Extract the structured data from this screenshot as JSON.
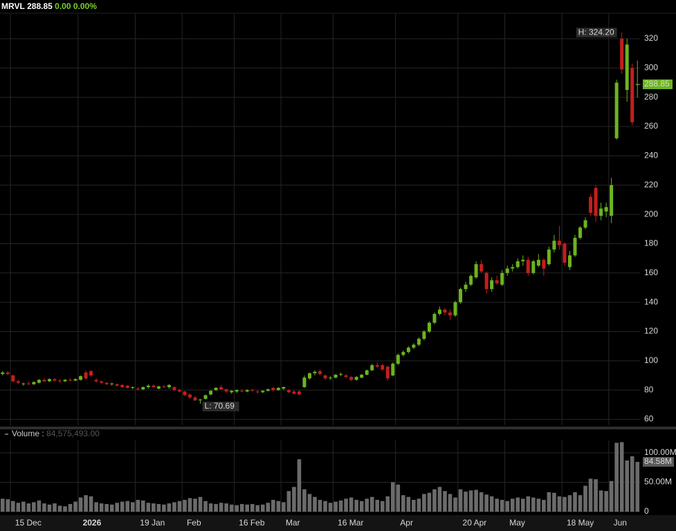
{
  "chart_data": [
    {
      "type": "candlestick",
      "symbol": "MRVL",
      "change": "0.00",
      "change_pct": "0.00%",
      "high_label": "H: 324.20",
      "low_label": "L: 70.69",
      "up_color": "#6cb41f",
      "down_color": "#c41e1e",
      "grid": true,
      "ylim": [
        56,
        337
      ],
      "yticks": [
        60,
        80,
        100,
        120,
        140,
        160,
        180,
        200,
        220,
        240,
        260,
        280,
        300,
        320
      ],
      "categories": [
        null,
        null,
        "15 Dec",
        null,
        null,
        null,
        null,
        null,
        null,
        null,
        null,
        null,
        null,
        null,
        null,
        "2026",
        null,
        null,
        null,
        null,
        null,
        null,
        null,
        null,
        null,
        null,
        "19 Jan",
        null,
        null,
        null,
        null,
        null,
        null,
        null,
        null,
        "Feb",
        null,
        null,
        null,
        null,
        null,
        null,
        null,
        null,
        null,
        "16 Feb",
        null,
        null,
        null,
        null,
        null,
        null,
        null,
        null,
        "Mar",
        null,
        null,
        null,
        null,
        null,
        null,
        null,
        null,
        null,
        "16 Mar",
        null,
        null,
        null,
        null,
        null,
        null,
        null,
        null,
        null,
        null,
        null,
        "Apr",
        null,
        null,
        null,
        null,
        null,
        null,
        null,
        null,
        null,
        null,
        null,
        "20 Apr",
        null,
        null,
        null,
        null,
        null,
        null,
        null,
        null,
        "May",
        null,
        null,
        null,
        null,
        null,
        null,
        null,
        null,
        null,
        null,
        "18 May",
        null,
        null,
        null,
        null,
        null,
        null,
        null,
        null,
        "Jun",
        null,
        null,
        null,
        null,
        null
      ],
      "open": [
        91,
        92,
        90,
        86,
        84,
        84.5,
        84,
        85,
        87,
        86,
        87.5,
        86.5,
        86,
        87,
        86.5,
        87,
        92,
        93,
        87,
        86,
        85,
        84,
        84,
        83.5,
        83,
        81.5,
        81,
        80.5,
        82,
        83,
        81,
        82.5,
        82,
        82,
        80,
        79,
        77,
        75,
        73,
        74,
        77,
        80,
        82,
        80.5,
        78.5,
        79,
        79.5,
        79,
        80,
        79,
        78.5,
        79.5,
        81.5,
        80,
        81,
        80,
        79,
        79,
        82,
        88,
        91.5,
        93,
        90,
        88,
        88.5,
        90.5,
        90,
        89,
        87,
        88.5,
        90.5,
        93.5,
        97,
        97,
        96,
        90,
        98,
        104,
        106,
        109,
        111,
        115,
        120,
        126,
        132,
        135,
        133,
        131,
        140,
        149,
        152,
        157,
        166,
        160,
        149,
        155,
        152,
        160,
        163,
        164,
        168,
        169,
        160,
        165,
        169,
        166,
        176,
        182,
        180,
        164,
        172,
        184,
        191,
        212,
        218,
        199,
        202,
        199,
        252,
        320,
        285,
        300,
        288.85
      ],
      "high": [
        93,
        93,
        90.5,
        87,
        85,
        86,
        86,
        87.5,
        88,
        88,
        88,
        87.5,
        87.5,
        88,
        88,
        90,
        93.5,
        93.5,
        88,
        86.5,
        85.5,
        85,
        84.5,
        84,
        83.5,
        82.5,
        82,
        82.5,
        84,
        84,
        83,
        83.5,
        84,
        82.5,
        81,
        79.5,
        77.5,
        76,
        74,
        77,
        80,
        82,
        83.5,
        81,
        80,
        80.5,
        80.5,
        80.5,
        81,
        80,
        80,
        81,
        82,
        82,
        82.5,
        80.5,
        80,
        80,
        90,
        92,
        93.5,
        94,
        90.5,
        89.5,
        91,
        92,
        91,
        89.5,
        89.5,
        91,
        94,
        98,
        99,
        98,
        96.5,
        99,
        105,
        107,
        110,
        112,
        116,
        121,
        127,
        133,
        137,
        136,
        135,
        141,
        150,
        154,
        159,
        168,
        169,
        161,
        157,
        158,
        162,
        165,
        166,
        170,
        172,
        171,
        169,
        173,
        170,
        178,
        186,
        192,
        181,
        175,
        186,
        192,
        198,
        214,
        220,
        208,
        208,
        225,
        292,
        324.2,
        320,
        303,
        305
      ],
      "low": [
        90,
        90,
        85.5,
        84,
        83,
        83.5,
        83.5,
        84.5,
        85.5,
        85.5,
        86,
        85,
        85.5,
        86,
        86,
        86.5,
        87,
        89,
        85,
        84,
        83.5,
        83,
        82.5,
        81.5,
        81,
        80.5,
        79.5,
        80,
        81,
        81.5,
        80.5,
        81.5,
        81,
        79.5,
        78.5,
        76,
        74,
        72.5,
        70.69,
        73.5,
        76.5,
        79.5,
        80,
        78,
        77.5,
        78,
        78.5,
        78.5,
        79,
        77.5,
        78,
        79,
        79,
        79.5,
        80,
        78,
        77,
        76.5,
        81.5,
        87,
        90,
        90,
        87,
        87,
        88,
        89.5,
        88,
        86,
        86.5,
        88,
        90,
        93,
        95,
        93,
        86.5,
        89.5,
        97,
        103,
        105,
        108,
        110,
        114,
        119,
        125,
        131,
        131,
        128,
        130,
        139,
        147,
        151,
        156,
        160,
        146,
        147,
        152,
        151,
        158,
        161,
        163,
        165,
        158,
        159,
        164,
        158,
        165,
        174,
        176,
        165,
        162,
        171,
        183,
        190,
        199,
        195,
        196,
        198,
        194,
        251,
        296,
        277,
        261,
        280
      ],
      "close": [
        92,
        91,
        86,
        85,
        84.5,
        84,
        85.5,
        87,
        86,
        87.5,
        86.5,
        86,
        87,
        86.5,
        87.5,
        89.5,
        88,
        90,
        86,
        85,
        84,
        84.5,
        83,
        82,
        81.5,
        82,
        80.5,
        82,
        83,
        82,
        82.5,
        82,
        83.5,
        80,
        79,
        76.5,
        75,
        73,
        73.5,
        76.5,
        79.5,
        81.5,
        80.5,
        79,
        79.5,
        80,
        79,
        80,
        79.5,
        78.5,
        79.5,
        80.5,
        80,
        81.5,
        82,
        78.5,
        77.5,
        77,
        88.5,
        91.5,
        92.5,
        91,
        88,
        88.5,
        90.5,
        91,
        89,
        87,
        89,
        90.5,
        93.5,
        97,
        96,
        94,
        88,
        98,
        104,
        106,
        109,
        111,
        115,
        120,
        126,
        132,
        135,
        133,
        131,
        140,
        149,
        152,
        158,
        166,
        161,
        149,
        155,
        153,
        160,
        163,
        164,
        168,
        169,
        160,
        168,
        169,
        163,
        176,
        182,
        179,
        167,
        172,
        184,
        191,
        196,
        201,
        199,
        204,
        205,
        220,
        290,
        299,
        316,
        263,
        288.85
      ]
    },
    {
      "type": "bar",
      "title": "Volume :",
      "legend_value": "84,575,493.00",
      "last_value_label": "84.58M",
      "color": "#6b6b6b",
      "grid": true,
      "ylim": [
        0,
        121000000
      ],
      "yticks": [
        0,
        {
          "value": 50000000,
          "label": "50.00M"
        },
        {
          "value": 100000000,
          "label": "100.00M"
        }
      ],
      "values": [
        22000000,
        21000000,
        18000000,
        15000000,
        17000000,
        14000000,
        16000000,
        19000000,
        14000000,
        12000000,
        14000000,
        10000000,
        9000000,
        13000000,
        17000000,
        24000000,
        28000000,
        26000000,
        16000000,
        14000000,
        13000000,
        12000000,
        15000000,
        17000000,
        18000000,
        16000000,
        20000000,
        19000000,
        15000000,
        14000000,
        13000000,
        12000000,
        14000000,
        16000000,
        18000000,
        20000000,
        23000000,
        22000000,
        25000000,
        18000000,
        14000000,
        13000000,
        15000000,
        14000000,
        12000000,
        11000000,
        13000000,
        12000000,
        13000000,
        11000000,
        12000000,
        15000000,
        20000000,
        18000000,
        16000000,
        35000000,
        42000000,
        89000000,
        38000000,
        30000000,
        25000000,
        20000000,
        18000000,
        15000000,
        17000000,
        19000000,
        22000000,
        24000000,
        20000000,
        18000000,
        22000000,
        25000000,
        20000000,
        18000000,
        26000000,
        50000000,
        46000000,
        28000000,
        25000000,
        20000000,
        22000000,
        30000000,
        32000000,
        38000000,
        42000000,
        35000000,
        30000000,
        24000000,
        38000000,
        34000000,
        36000000,
        37000000,
        33000000,
        29000000,
        26000000,
        22000000,
        20000000,
        18000000,
        22000000,
        24000000,
        22000000,
        26000000,
        24000000,
        22000000,
        20000000,
        33000000,
        32000000,
        26000000,
        25000000,
        28000000,
        33000000,
        28000000,
        44000000,
        56000000,
        55000000,
        36000000,
        35000000,
        52000000,
        117000000,
        118000000,
        87000000,
        94000000,
        84575493
      ]
    }
  ]
}
